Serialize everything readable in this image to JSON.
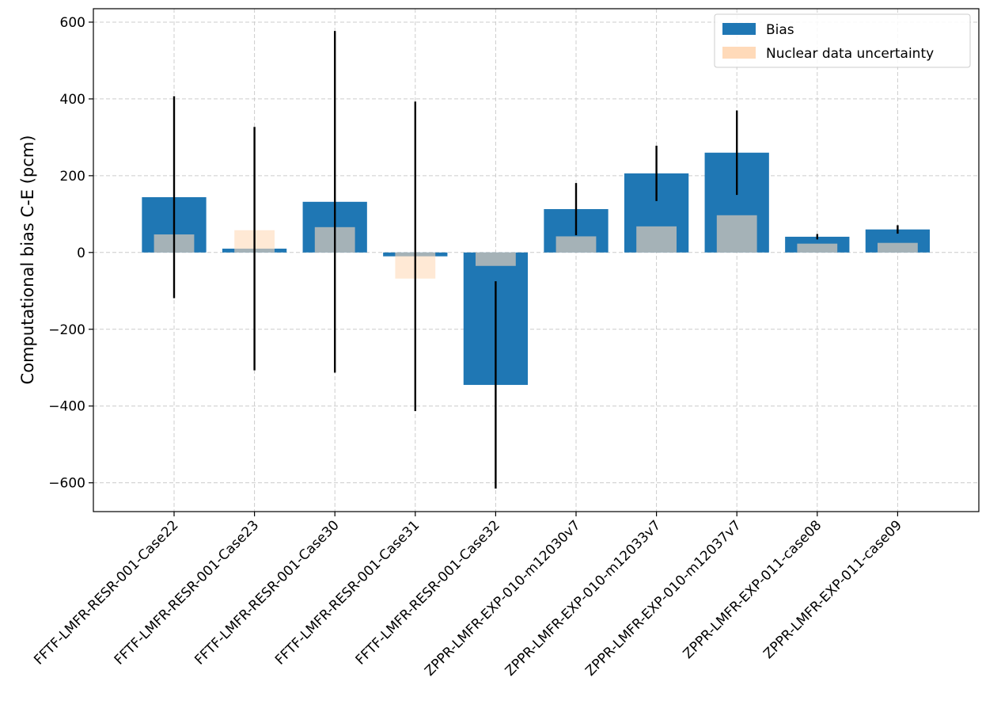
{
  "chart_data": {
    "type": "bar",
    "title": "",
    "xlabel": "",
    "ylabel": "Computational bias C-E (pcm)",
    "ylim": [
      -675,
      635
    ],
    "yticks": [
      -600,
      -400,
      -200,
      0,
      200,
      400,
      600
    ],
    "ytick_labels": [
      "−600",
      "−400",
      "−200",
      "0",
      "200",
      "400",
      "600"
    ],
    "grid": true,
    "legend_position": "top-right",
    "categories": [
      "FFTF-LMFR-RESR-001-Case22",
      "FFTF-LMFR-RESR-001-Case23",
      "FFTF-LMFR-RESR-001-Case30",
      "FFTF-LMFR-RESR-001-Case31",
      "FFTF-LMFR-RESR-001-Case32",
      "ZPPR-LMFR-EXP-010-m12030v7",
      "ZPPR-LMFR-EXP-010-m12033v7",
      "ZPPR-LMFR-EXP-010-m12037v7",
      "ZPPR-LMFR-EXP-011-case08",
      "ZPPR-LMFR-EXP-011-case09"
    ],
    "series": [
      {
        "name": "Bias",
        "color": "#1f77b4",
        "values": [
          144,
          10,
          132,
          -10,
          -345,
          113,
          206,
          260,
          41,
          60
        ],
        "error": [
          263,
          317,
          445,
          403,
          270,
          68,
          72,
          110,
          7,
          11
        ]
      },
      {
        "name": "Nuclear data uncertainty",
        "color": "#ffdab9",
        "values": [
          47,
          58,
          66,
          -68,
          -35,
          42,
          68,
          97,
          23,
          25
        ]
      }
    ]
  }
}
